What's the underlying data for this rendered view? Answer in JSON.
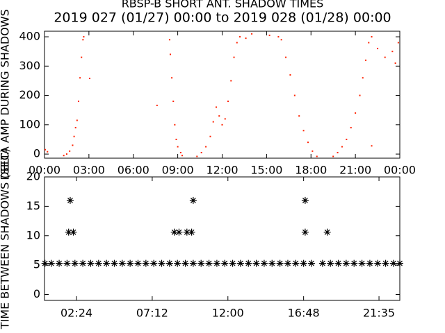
{
  "chart_data": [
    {
      "type": "scatter",
      "title": "RBSP-B SHORT ANT. SHADOW TIMES",
      "subtitle": "2019 027 (01/27) 00:00 to 2019 028 (01/28) 00:00",
      "ylabel": "DELTA AMP DURING SHADOWS",
      "marker": "dot",
      "color": "#ff2200",
      "xlim": [
        0,
        24
      ],
      "ylim": [
        -14,
        419
      ],
      "xticks": [
        {
          "value": 0,
          "label": "00:00"
        },
        {
          "value": 3,
          "label": "03:00"
        },
        {
          "value": 6,
          "label": "06:00"
        },
        {
          "value": 9,
          "label": "09:00"
        },
        {
          "value": 12,
          "label": "12:00"
        },
        {
          "value": 15,
          "label": "15:00"
        },
        {
          "value": 18,
          "label": "18:00"
        },
        {
          "value": 21,
          "label": "21:00"
        },
        {
          "value": 24,
          "label": "00:00"
        }
      ],
      "yticks": [
        0,
        100,
        200,
        300,
        400
      ],
      "x": [
        0.05,
        0.2,
        1.3,
        1.5,
        1.7,
        1.9,
        2.0,
        2.1,
        2.2,
        2.3,
        2.4,
        2.5,
        2.6,
        2.65,
        3.05,
        7.6,
        8.45,
        8.5,
        8.6,
        8.7,
        8.8,
        8.9,
        9.0,
        9.2,
        9.3,
        10.3,
        10.6,
        10.9,
        11.2,
        11.4,
        11.6,
        11.8,
        12.0,
        12.2,
        12.4,
        12.6,
        12.8,
        13.0,
        13.2,
        13.6,
        14.0,
        15.2,
        15.8,
        16.0,
        16.3,
        16.6,
        16.9,
        17.2,
        17.5,
        17.8,
        18.1,
        18.4,
        19.5,
        19.8,
        20.1,
        20.4,
        20.7,
        21.0,
        21.3,
        21.5,
        21.7,
        21.9,
        22.1,
        22.1,
        22.5,
        23.0,
        23.5,
        23.7,
        23.9
      ],
      "values": [
        15,
        8,
        -5,
        0,
        10,
        30,
        60,
        90,
        115,
        180,
        260,
        330,
        390,
        400,
        258,
        166,
        390,
        340,
        260,
        180,
        100,
        50,
        25,
        5,
        -5,
        -8,
        5,
        25,
        60,
        110,
        160,
        130,
        100,
        120,
        180,
        250,
        330,
        380,
        400,
        395,
        410,
        405,
        400,
        390,
        330,
        270,
        200,
        130,
        80,
        40,
        10,
        -8,
        -8,
        5,
        25,
        50,
        90,
        140,
        200,
        260,
        320,
        380,
        400,
        28,
        360,
        330,
        350,
        310,
        380
      ]
    },
    {
      "type": "scatter",
      "ylabel": "TIME BETWEEN SHADOWS (SEC)",
      "marker": "asterisk",
      "color": "#000000",
      "xlim": [
        0.37,
        22.9
      ],
      "ylim": [
        -1,
        20
      ],
      "xticks": [
        {
          "value": 2.4,
          "label": "02:24"
        },
        {
          "value": 7.2,
          "label": "07:12"
        },
        {
          "value": 12,
          "label": "12:00"
        },
        {
          "value": 16.8,
          "label": "16:48"
        },
        {
          "value": 21.58,
          "label": "21:35"
        }
      ],
      "yticks": [
        0,
        5,
        10,
        15,
        20
      ],
      "x": [
        0.4,
        0.8,
        1.3,
        1.8,
        2.3,
        2.8,
        3.3,
        3.8,
        4.3,
        4.8,
        5.3,
        5.8,
        6.3,
        6.8,
        7.3,
        7.8,
        8.3,
        8.8,
        9.3,
        9.8,
        10.3,
        10.8,
        11.3,
        11.8,
        12.3,
        12.8,
        13.3,
        13.8,
        14.3,
        14.8,
        15.3,
        15.8,
        16.3,
        16.8,
        17.3,
        18.0,
        18.5,
        19.0,
        19.5,
        20.0,
        20.5,
        21.0,
        21.5,
        22.0,
        22.5,
        22.9,
        2.0,
        1.9,
        2.2,
        8.6,
        8.9,
        9.4,
        9.7,
        9.8,
        16.9,
        16.9,
        18.3
      ],
      "values": [
        5.3,
        5.3,
        5.3,
        5.3,
        5.3,
        5.3,
        5.3,
        5.3,
        5.3,
        5.3,
        5.3,
        5.3,
        5.3,
        5.3,
        5.3,
        5.3,
        5.3,
        5.3,
        5.3,
        5.3,
        5.3,
        5.3,
        5.3,
        5.3,
        5.3,
        5.3,
        5.3,
        5.3,
        5.3,
        5.3,
        5.3,
        5.3,
        5.3,
        5.3,
        5.3,
        5.3,
        5.3,
        5.3,
        5.3,
        5.3,
        5.3,
        5.3,
        5.3,
        5.3,
        5.3,
        5.3,
        16,
        10.6,
        10.6,
        10.6,
        10.6,
        10.6,
        10.6,
        16,
        16,
        10.6,
        10.6
      ]
    }
  ]
}
